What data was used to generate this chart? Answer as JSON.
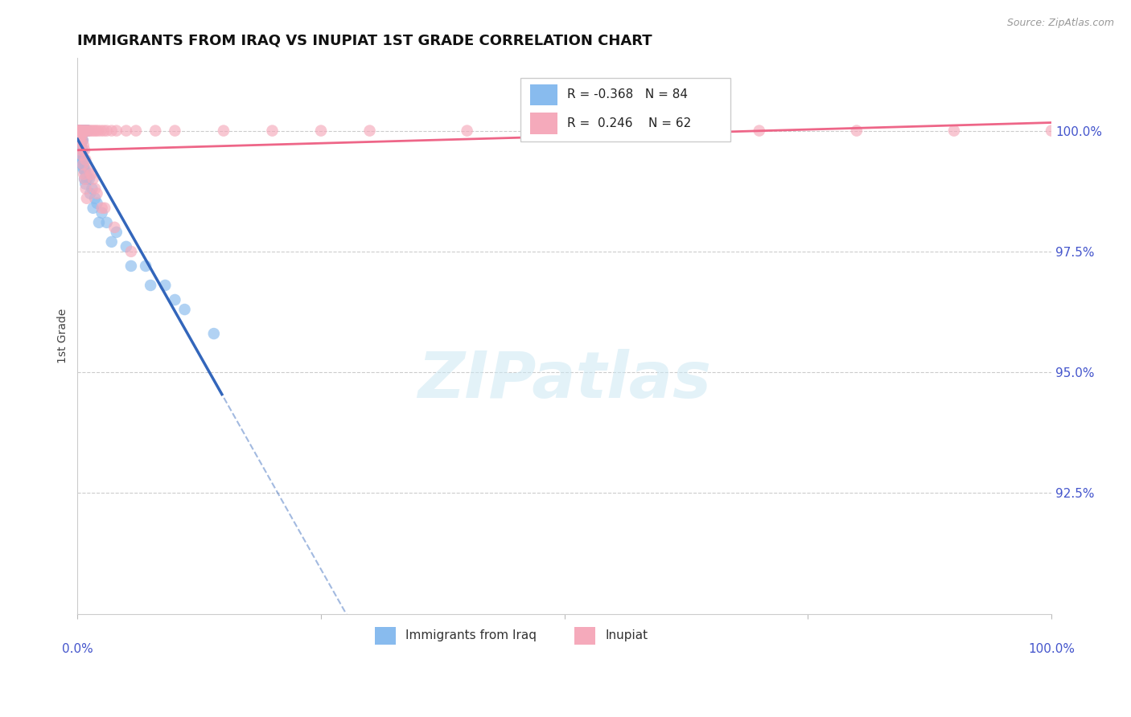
{
  "title": "IMMIGRANTS FROM IRAQ VS INUPIAT 1ST GRADE CORRELATION CHART",
  "source_text": "Source: ZipAtlas.com",
  "ylabel": "1st Grade",
  "ytick_values": [
    92.5,
    95.0,
    97.5,
    100.0
  ],
  "ytick_labels": [
    "92.5%",
    "95.0%",
    "97.5%",
    "100.0%"
  ],
  "ymin": 90.0,
  "ymax": 101.5,
  "xmin": 0.0,
  "xmax": 100.0,
  "legend_blue_r": "-0.368",
  "legend_blue_n": "84",
  "legend_pink_r": "0.246",
  "legend_pink_n": "62",
  "legend_label_blue": "Immigrants from Iraq",
  "legend_label_pink": "Inupiat",
  "blue_color": "#88BBEE",
  "pink_color": "#F5AABB",
  "blue_line_color": "#3366BB",
  "pink_line_color": "#EE6688",
  "axis_label_color": "#4455CC",
  "title_fontsize": 13,
  "blue_scatter_x": [
    0.1,
    0.2,
    0.3,
    0.4,
    0.5,
    0.6,
    0.7,
    0.8,
    0.9,
    1.0,
    0.15,
    0.25,
    0.35,
    0.45,
    0.55,
    0.65,
    0.75,
    0.85,
    0.95,
    1.1,
    0.1,
    0.2,
    0.3,
    0.4,
    0.5,
    0.6,
    0.7,
    0.8,
    0.9,
    1.0,
    0.15,
    0.25,
    0.35,
    0.45,
    0.55,
    0.12,
    0.22,
    0.32,
    0.42,
    0.52,
    0.18,
    0.28,
    0.38,
    0.48,
    0.58,
    0.68,
    0.78,
    0.88,
    0.98,
    1.2,
    1.5,
    1.8,
    2.0,
    2.5,
    3.0,
    4.0,
    5.0,
    7.0,
    9.0,
    10.0,
    1.3,
    1.6,
    2.2,
    3.5,
    5.5,
    7.5,
    11.0,
    14.0,
    0.05,
    0.08,
    0.11,
    0.14,
    0.17,
    0.21,
    0.26,
    0.31,
    0.36,
    0.41,
    0.46,
    0.51,
    0.56,
    0.62,
    0.72,
    0.82
  ],
  "blue_scatter_y": [
    100.0,
    100.0,
    100.0,
    100.0,
    100.0,
    100.0,
    100.0,
    100.0,
    100.0,
    100.0,
    100.0,
    100.0,
    100.0,
    100.0,
    100.0,
    100.0,
    100.0,
    100.0,
    100.0,
    100.0,
    100.0,
    100.0,
    100.0,
    100.0,
    100.0,
    100.0,
    100.0,
    100.0,
    100.0,
    100.0,
    99.8,
    99.8,
    99.8,
    99.8,
    99.8,
    99.7,
    99.7,
    99.7,
    99.6,
    99.6,
    99.5,
    99.5,
    99.4,
    99.3,
    99.3,
    99.2,
    99.2,
    99.1,
    99.0,
    99.0,
    98.8,
    98.6,
    98.5,
    98.3,
    98.1,
    97.9,
    97.6,
    97.2,
    96.8,
    96.5,
    98.7,
    98.4,
    98.1,
    97.7,
    97.2,
    96.8,
    96.3,
    95.8,
    100.0,
    100.0,
    99.9,
    99.9,
    99.9,
    99.8,
    99.8,
    99.7,
    99.7,
    99.6,
    99.5,
    99.4,
    99.3,
    99.2,
    99.0,
    98.9
  ],
  "pink_scatter_x": [
    0.1,
    0.2,
    0.3,
    0.4,
    0.5,
    0.6,
    0.7,
    0.8,
    0.9,
    1.0,
    1.1,
    1.3,
    1.5,
    1.7,
    1.9,
    2.1,
    2.4,
    2.7,
    3.0,
    3.5,
    4.0,
    5.0,
    6.0,
    8.0,
    10.0,
    15.0,
    20.0,
    25.0,
    30.0,
    40.0,
    50.0,
    60.0,
    70.0,
    80.0,
    90.0,
    100.0,
    0.15,
    0.25,
    0.35,
    0.45,
    0.55,
    0.65,
    0.75,
    0.85,
    0.95,
    1.2,
    1.6,
    2.0,
    2.8,
    3.8,
    0.12,
    0.22,
    0.32,
    0.42,
    0.52,
    0.62,
    0.72,
    0.82,
    1.4,
    1.8,
    2.5,
    5.5
  ],
  "pink_scatter_y": [
    100.0,
    100.0,
    100.0,
    100.0,
    100.0,
    100.0,
    100.0,
    100.0,
    100.0,
    100.0,
    100.0,
    100.0,
    100.0,
    100.0,
    100.0,
    100.0,
    100.0,
    100.0,
    100.0,
    100.0,
    100.0,
    100.0,
    100.0,
    100.0,
    100.0,
    100.0,
    100.0,
    100.0,
    100.0,
    100.0,
    100.0,
    100.0,
    100.0,
    100.0,
    100.0,
    100.0,
    99.8,
    99.8,
    99.6,
    99.5,
    99.3,
    99.1,
    99.0,
    98.8,
    98.6,
    99.2,
    99.0,
    98.7,
    98.4,
    98.0,
    100.0,
    100.0,
    99.9,
    99.9,
    99.8,
    99.7,
    99.6,
    99.4,
    99.1,
    98.8,
    98.4,
    97.5
  ]
}
